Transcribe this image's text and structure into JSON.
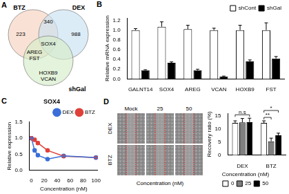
{
  "panel_labels": [
    "A",
    "B",
    "C",
    "D"
  ],
  "venn": {
    "sets": [
      {
        "name": "BTZ",
        "color": "#f6d3bf"
      },
      {
        "name": "DEX",
        "color": "#c9e2f3"
      },
      {
        "name": "shGal",
        "color": "#d5ecc8"
      }
    ],
    "regions": [
      {
        "sets": [
          "BTZ"
        ],
        "count": 223
      },
      {
        "sets": [
          "BTZ",
          "DEX"
        ],
        "count": 340
      },
      {
        "sets": [
          "DEX"
        ],
        "count": 988
      },
      {
        "sets": [
          "BTZ",
          "DEX",
          "shGal"
        ],
        "genes": [
          "SOX4"
        ]
      },
      {
        "sets": [
          "BTZ",
          "shGal"
        ],
        "genes": [
          "AREG",
          "FST"
        ]
      },
      {
        "sets": [
          "shGal"
        ],
        "genes": [
          "HOXB9",
          "VCAN"
        ]
      }
    ]
  },
  "chart_data": [
    {
      "type": "bar",
      "categories": [
        "GALNT14",
        "SOX4",
        "AREG",
        "VCAN",
        "HOXB9",
        "FST"
      ],
      "y_label": "Relative mRNA expression",
      "ylim": [
        0,
        1.25
      ],
      "yticks": [
        {
          "value": 0,
          "label": "0.0"
        },
        {
          "value": 0.2,
          "label": "0.2"
        },
        {
          "value": 0.4,
          "label": "0.4"
        },
        {
          "value": 0.6,
          "label": "0.6"
        },
        {
          "value": 0.8,
          "label": "0.8"
        },
        {
          "value": 1.0,
          "label": "1.0"
        },
        {
          "value": 1.2,
          "label": "1.2"
        }
      ],
      "grid": false,
      "legend": "top-right",
      "series": [
        {
          "name": "shCont",
          "color": "#ffffff",
          "values": [
            1.0,
            1.07,
            1.02,
            1.0,
            1.0,
            1.0
          ],
          "errors": [
            0.03,
            0.1,
            0.08,
            0.04,
            0.1,
            0.15
          ]
        },
        {
          "name": "shGal",
          "color": "#000000",
          "values": [
            0.18,
            0.33,
            0.18,
            0.05,
            0.36,
            0.42
          ],
          "errors": [
            0.01,
            0.02,
            0.02,
            0.01,
            0.03,
            0.04
          ]
        }
      ]
    },
    {
      "type": "line",
      "title": "SOX4",
      "x_label": "Concentration (nM)",
      "y_label": "Relative expression",
      "xlim": [
        -3,
        103
      ],
      "xticks": [
        0,
        20,
        40,
        60,
        80,
        100
      ],
      "ylim": [
        0,
        1.5
      ],
      "yticks": [
        {
          "value": 0,
          "label": "0.0"
        },
        {
          "value": 0.5,
          "label": "0.5"
        },
        {
          "value": 1.0,
          "label": "1.0"
        },
        {
          "value": 1.5,
          "label": "1.5"
        }
      ],
      "grid": false,
      "legend": "top-right",
      "x": [
        0,
        5,
        10,
        25,
        50,
        100
      ],
      "series": [
        {
          "name": "DEX",
          "color": "#3a6fd8",
          "marker": "circle",
          "values": [
            1.0,
            0.62,
            0.47,
            0.35,
            0.45,
            0.4
          ],
          "errors": [
            0.03,
            0.05,
            0.04,
            0.03,
            0.04,
            0.03
          ]
        },
        {
          "name": "BTZ",
          "color": "#e0403a",
          "marker": "circle",
          "values": [
            1.0,
            0.95,
            0.85,
            0.62,
            0.44,
            0.4
          ],
          "errors": [
            0.05,
            0.05,
            0.05,
            0.04,
            0.04,
            0.03
          ]
        }
      ]
    },
    {
      "type": "bar",
      "categories": [
        "DEX",
        "BTZ"
      ],
      "y_label": "Recovery ratio (%)",
      "ylim": [
        0,
        16
      ],
      "yticks": [
        0,
        5,
        10,
        15
      ],
      "grid": false,
      "legend": "bottom",
      "legend_title": "Concentration (nM)",
      "series": [
        {
          "name": "0",
          "color": "#ffffff",
          "values": [
            12.3,
            12.3
          ],
          "errors": [
            0.8,
            0.8
          ]
        },
        {
          "name": "25",
          "color": "#808080",
          "values": [
            12.5,
            5.3
          ],
          "errors": [
            1.5,
            1.2
          ]
        },
        {
          "name": "50",
          "color": "#000000",
          "values": [
            12.6,
            7.6
          ],
          "errors": [
            1.5,
            0.8
          ]
        }
      ],
      "annotations": [
        {
          "text": "n.s",
          "category": "DEX",
          "from": "0",
          "to": "50"
        },
        {
          "text": "**",
          "category": "BTZ",
          "from": "0",
          "to": "25"
        },
        {
          "text": "*",
          "category": "BTZ",
          "from": "0",
          "to": "50"
        }
      ]
    }
  ],
  "wound_healing": {
    "columns": [
      "Mock",
      "25",
      "50"
    ],
    "rows": [
      "DEX",
      "BTZ"
    ],
    "x_label": "Concentration (nM)"
  }
}
